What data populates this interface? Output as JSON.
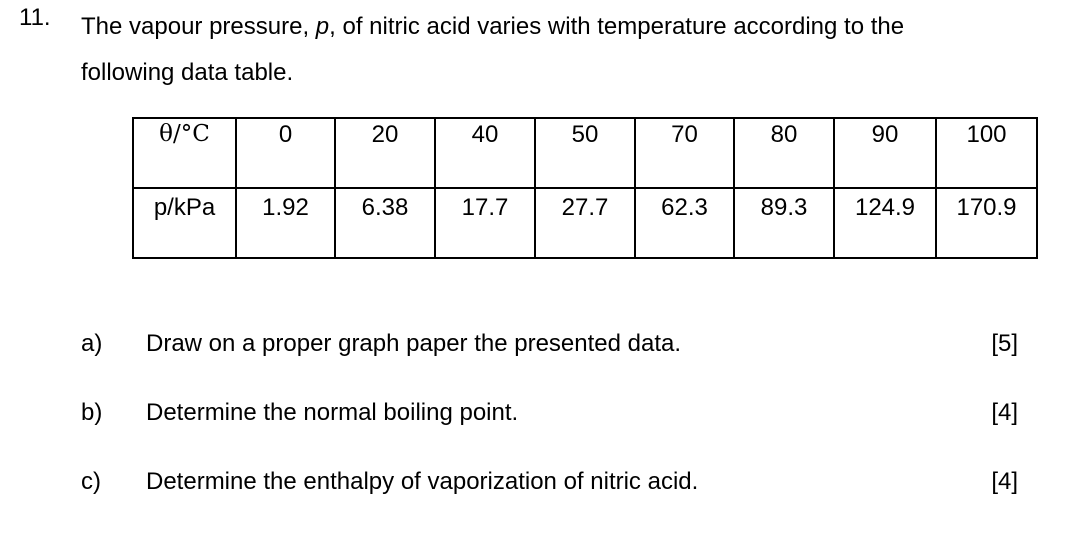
{
  "question": {
    "number": "11.",
    "stem_line1_a": "The vapour pressure, ",
    "stem_var": "p",
    "stem_line1_b": ", of nitric acid varies with temperature according to the",
    "stem_line2": "following data table."
  },
  "table": {
    "row1": [
      "θ/°C",
      "0",
      "20",
      "40",
      "50",
      "70",
      "80",
      "90",
      "100"
    ],
    "row2": [
      "p/kPa",
      "1.92",
      "6.38",
      "17.7",
      "27.7",
      "62.3",
      "89.3",
      "124.9",
      "170.9"
    ]
  },
  "parts": [
    {
      "label": "a)",
      "text": "Draw on a proper graph paper the presented data.",
      "marks": "[5]"
    },
    {
      "label": "b)",
      "text": "Determine the normal boiling point.",
      "marks": "[4]"
    },
    {
      "label": "c)",
      "text": "Determine the enthalpy of vaporization of nitric acid.",
      "marks": "[4]"
    }
  ]
}
